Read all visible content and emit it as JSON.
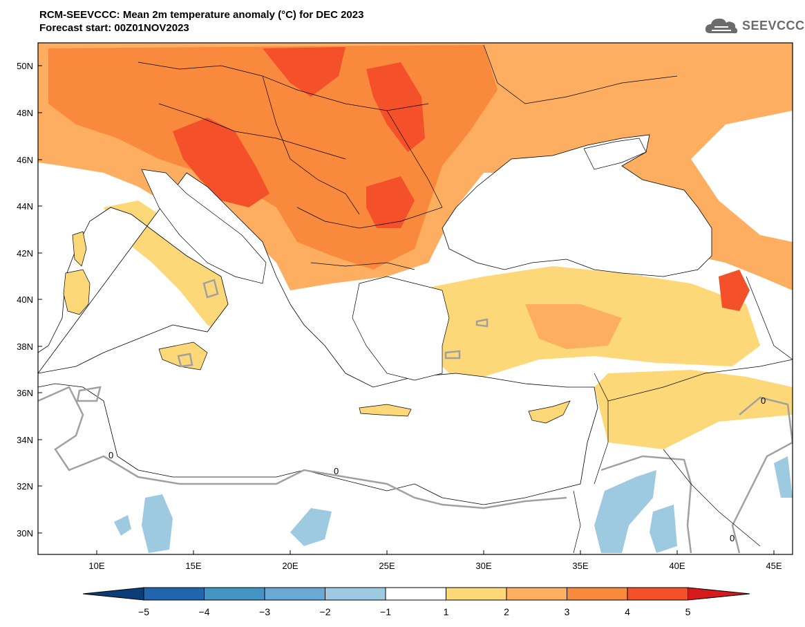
{
  "header": {
    "title_line1": "RCM-SEEVCCC: Mean 2m temperature anomaly (°C) for DEC 2023",
    "title_line2": "Forecast start: 00Z01NOV2023"
  },
  "logo": {
    "text": "SEEVCCC",
    "icon": "cloud-icon"
  },
  "map": {
    "lat_ticks": [
      "50N",
      "48N",
      "46N",
      "44N",
      "42N",
      "40N",
      "38N",
      "36N",
      "34N",
      "32N",
      "30N"
    ],
    "lon_ticks": [
      "10E",
      "15E",
      "20E",
      "25E",
      "30E",
      "35E",
      "40E",
      "45E"
    ],
    "contour_labels": [
      "0",
      "0",
      "0",
      "0"
    ]
  },
  "colorbar": {
    "labels": [
      "−5",
      "−4",
      "−3",
      "−2",
      "−1",
      "1",
      "2",
      "3",
      "4",
      "5"
    ],
    "colors": [
      "#0b3d78",
      "#2166ac",
      "#4393c3",
      "#6aa8d6",
      "#9ecae1",
      "#ffffff",
      "#fdd878",
      "#fdae61",
      "#f98a3d",
      "#f4502a",
      "#d7191c"
    ]
  },
  "colors": {
    "land_sea_bg": "#ffffff",
    "anom_1_2": "#fdd878",
    "anom_2_3": "#fdae61",
    "anom_3_4": "#f98a3d",
    "anom_4_5": "#f4502a",
    "anom_5p": "#e8261c",
    "anom_neg": "#9ecae1",
    "zero_contour": "#a0a0a0"
  }
}
